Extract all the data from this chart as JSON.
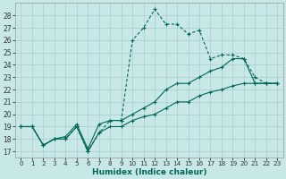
{
  "xlabel": "Humidex (Indice chaleur)",
  "bg_color": "#c8e8e8",
  "grid_color": "#a8cccc",
  "line_color": "#006655",
  "xlim": [
    -0.5,
    23.5
  ],
  "ylim": [
    16.5,
    29.0
  ],
  "yticks": [
    17,
    18,
    19,
    20,
    21,
    22,
    23,
    24,
    25,
    26,
    27,
    28
  ],
  "xticks": [
    0,
    1,
    2,
    3,
    4,
    5,
    6,
    7,
    8,
    9,
    10,
    11,
    12,
    13,
    14,
    15,
    16,
    17,
    18,
    19,
    20,
    21,
    22,
    23
  ],
  "series_dashed": [
    19,
    19,
    17.5,
    18,
    18,
    19,
    17,
    18.5,
    19.5,
    19.5,
    26,
    27,
    28.5,
    27.3,
    27.3,
    26.5,
    26.8,
    24.5,
    24.8,
    24.8,
    24.5,
    23,
    22.5,
    22.5
  ],
  "series_solid1": [
    19,
    19,
    17.5,
    18,
    18.2,
    19.2,
    17.2,
    19.2,
    19.5,
    19.5,
    20.0,
    20.5,
    21.0,
    22.0,
    22.5,
    22.5,
    23.0,
    23.5,
    23.8,
    24.5,
    24.5,
    22.5,
    22.5,
    22.5
  ],
  "series_solid2": [
    19,
    19,
    17.5,
    18,
    18,
    19,
    17,
    18.5,
    19.0,
    19.0,
    19.5,
    19.8,
    20.0,
    20.5,
    21.0,
    21.0,
    21.5,
    21.8,
    22.0,
    22.3,
    22.5,
    22.5,
    22.5,
    22.5
  ]
}
